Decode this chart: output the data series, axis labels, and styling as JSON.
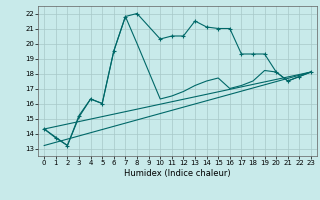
{
  "title": "",
  "xlabel": "Humidex (Indice chaleur)",
  "bg_color": "#c8eaea",
  "line_color": "#006868",
  "grid_color": "#a8c8c8",
  "xlim": [
    -0.5,
    23.5
  ],
  "ylim": [
    12.5,
    22.5
  ],
  "xticks": [
    0,
    1,
    2,
    3,
    4,
    5,
    6,
    7,
    8,
    9,
    10,
    11,
    12,
    13,
    14,
    15,
    16,
    17,
    18,
    19,
    20,
    21,
    22,
    23
  ],
  "yticks": [
    13,
    14,
    15,
    16,
    17,
    18,
    19,
    20,
    21,
    22
  ],
  "line1_x": [
    0,
    1,
    2,
    3,
    4,
    5,
    6,
    7,
    8,
    10,
    11,
    12,
    13,
    14,
    15,
    16,
    17,
    18,
    19,
    20,
    21,
    22,
    23
  ],
  "line1_y": [
    14.3,
    13.7,
    13.2,
    15.2,
    16.3,
    16.0,
    19.5,
    21.8,
    22.0,
    20.3,
    20.5,
    20.5,
    21.5,
    21.1,
    21.0,
    21.0,
    19.3,
    19.3,
    19.3,
    18.1,
    17.5,
    17.8,
    18.1
  ],
  "line2_x": [
    0,
    2,
    3,
    4,
    5,
    6,
    7,
    8,
    10,
    11,
    12,
    13,
    14,
    15,
    16,
    17,
    18,
    19,
    20,
    21,
    22,
    23
  ],
  "line2_y": [
    14.3,
    13.2,
    15.1,
    16.3,
    16.0,
    19.5,
    21.8,
    20.0,
    16.3,
    16.5,
    16.8,
    17.2,
    17.5,
    17.7,
    17.0,
    17.2,
    17.5,
    18.2,
    18.1,
    17.5,
    17.8,
    18.1
  ],
  "line3_x": [
    0,
    23
  ],
  "line3_y": [
    14.3,
    18.1
  ],
  "line4_x": [
    0,
    23
  ],
  "line4_y": [
    13.2,
    18.1
  ],
  "xlabel_fontsize": 6,
  "tick_fontsize": 5
}
